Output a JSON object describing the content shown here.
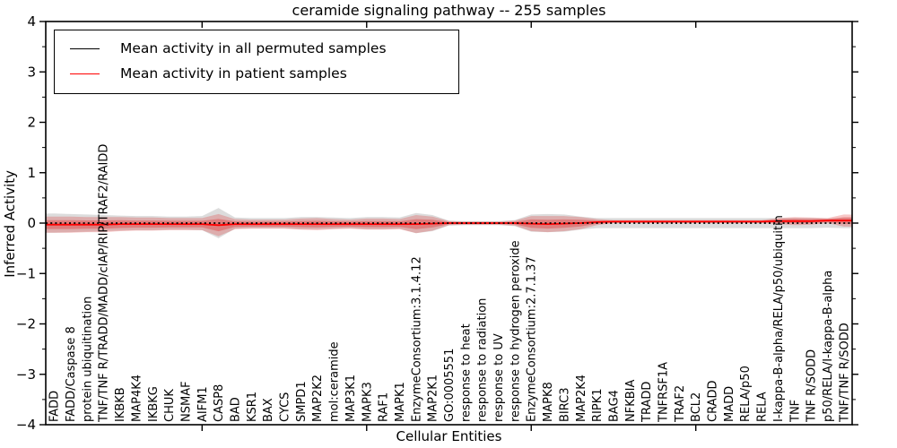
{
  "chart_data": {
    "type": "line",
    "title": "ceramide signaling pathway -- 255 samples",
    "xlabel": "Cellular Entities",
    "ylabel": "Inferred Activity",
    "ylim": [
      -4,
      4
    ],
    "yticks_major": [
      -4,
      -3,
      -2,
      -1,
      0,
      1,
      2,
      3,
      4
    ],
    "ytick_labels": [
      "−4",
      "−3",
      "−2",
      "−1",
      "0",
      "1",
      "2",
      "3",
      "4"
    ],
    "minor_tick_step": 0.5,
    "xtick_major_indices": [
      9,
      19,
      29,
      39
    ],
    "grid": false,
    "legend_position": "upper left",
    "legend": [
      {
        "label": "Mean activity in all permuted samples",
        "color": "#000000"
      },
      {
        "label": "Mean activity in patient samples",
        "color": "#ff0000"
      }
    ],
    "categories": [
      "FADD",
      "FADD/Caspase 8",
      "protein ubiquitination",
      "TNF/TNF R/TRADD/MADD/cIAP/RIP/TRAF2/RAIDD",
      "IKBKB",
      "MAP4K4",
      "IKBKG",
      "CHUK",
      "NSMAF",
      "AIFM1",
      "CASP8",
      "BAD",
      "KSR1",
      "BAX",
      "CYCS",
      "SMPD1",
      "MAP2K2",
      "mol:ceramide",
      "MAP3K1",
      "MAPK3",
      "RAF1",
      "MAPK1",
      "EnzymeConsortium:3.1.4.12",
      "MAP2K1",
      "GO:0005551",
      "response to heat",
      "response to radiation",
      "response to UV",
      "response to hydrogen peroxide",
      "EnzymeConsortium:2.7.1.37",
      "MAPK8",
      "BIRC3",
      "MAP2K4",
      "RIPK1",
      "BAG4",
      "NFKBIA",
      "TRADD",
      "TNFRSF1A",
      "TRAF2",
      "BCL2",
      "CRADD",
      "MADD",
      "RELA/p50",
      "RELA",
      "I-kappa-B-alpha/RELA/p50/ubiquitin",
      "TNF",
      "TNF R/SODD",
      "p50/RELA/I-kappa-B-alpha",
      "TNF/TNF R/SODD"
    ],
    "series": [
      {
        "name": "Mean activity in all permuted samples",
        "color": "#000000",
        "style": "dotted",
        "values": [
          0,
          0,
          0,
          0,
          0,
          0,
          0,
          0,
          0,
          0,
          0,
          0,
          0,
          0,
          0,
          0,
          0,
          0,
          0,
          0,
          0,
          0,
          0,
          0,
          0,
          0,
          0,
          0,
          0,
          0,
          0,
          0,
          0,
          0,
          0,
          0,
          0,
          0,
          0,
          0,
          0,
          0,
          0,
          0,
          0,
          0,
          0,
          0,
          0
        ],
        "band_halfwidth": [
          0.19,
          0.18,
          0.17,
          0.16,
          0.15,
          0.14,
          0.14,
          0.13,
          0.13,
          0.14,
          0.3,
          0.11,
          0.1,
          0.1,
          0.1,
          0.12,
          0.12,
          0.11,
          0.1,
          0.12,
          0.12,
          0.11,
          0.2,
          0.16,
          0.05,
          0.04,
          0.04,
          0.04,
          0.06,
          0.17,
          0.18,
          0.17,
          0.13,
          0.1,
          0.1,
          0.1,
          0.1,
          0.1,
          0.1,
          0.1,
          0.1,
          0.1,
          0.1,
          0.1,
          0.1,
          0.1,
          0.1,
          0.09,
          0.1
        ],
        "band_color": "#bfbfbf",
        "band_opacity": 0.55
      },
      {
        "name": "Mean activity in patient samples",
        "color": "#ff0000",
        "style": "solid",
        "values": [
          -0.03,
          -0.03,
          -0.03,
          -0.03,
          -0.02,
          -0.02,
          -0.02,
          -0.02,
          -0.02,
          -0.02,
          -0.04,
          -0.02,
          -0.02,
          -0.02,
          -0.02,
          -0.02,
          -0.02,
          -0.02,
          -0.02,
          -0.02,
          -0.02,
          -0.02,
          -0.02,
          -0.01,
          0,
          0,
          0,
          0,
          0,
          -0.01,
          -0.02,
          -0.01,
          0,
          0.02,
          0.03,
          0.03,
          0.03,
          0.03,
          0.03,
          0.03,
          0.03,
          0.03,
          0.03,
          0.03,
          0.04,
          0.04,
          0.04,
          0.05,
          0.05
        ],
        "band_halfwidth": [
          0.16,
          0.16,
          0.15,
          0.15,
          0.14,
          0.13,
          0.13,
          0.12,
          0.12,
          0.12,
          0.22,
          0.1,
          0.09,
          0.09,
          0.09,
          0.11,
          0.12,
          0.1,
          0.09,
          0.11,
          0.11,
          0.1,
          0.18,
          0.14,
          0.04,
          0.03,
          0.03,
          0.03,
          0.05,
          0.15,
          0.16,
          0.15,
          0.12,
          0.06,
          0.03,
          0.03,
          0.03,
          0.03,
          0.03,
          0.03,
          0.03,
          0.03,
          0.03,
          0.03,
          0.06,
          0.08,
          0.07,
          0.05,
          0.12
        ],
        "band_color": "#e03030",
        "band_opacity": 0.27,
        "band_inner_scale": 0.55,
        "band_inner_opacity": 0.38
      }
    ]
  }
}
